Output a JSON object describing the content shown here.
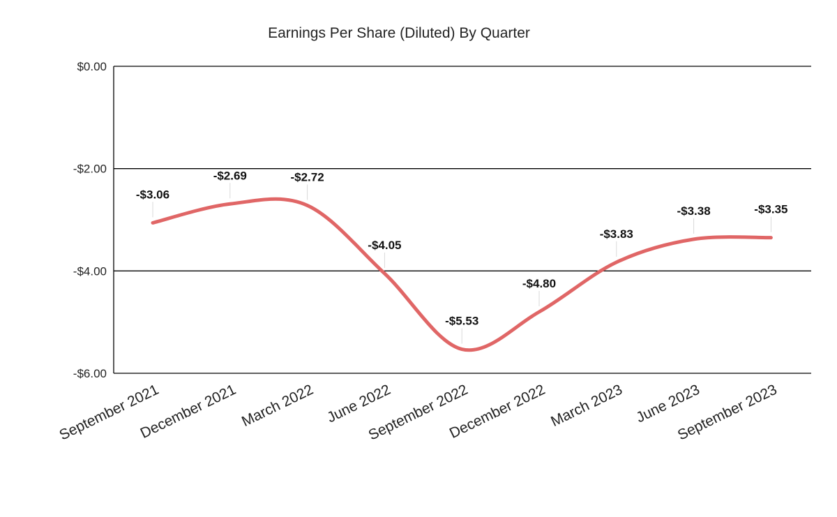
{
  "chart_data": {
    "type": "line",
    "title": "Earnings Per Share (Diluted) By Quarter",
    "xlabel": "",
    "ylabel": "",
    "categories": [
      "September 2021",
      "December 2021",
      "March 2022",
      "June 2022",
      "September 2022",
      "December 2022",
      "March 2023",
      "June 2023",
      "September 2023"
    ],
    "series": [
      {
        "values": [
          -3.06,
          -2.69,
          -2.72,
          -4.05,
          -5.53,
          -4.8,
          -3.83,
          -3.38,
          -3.35
        ],
        "data_labels": [
          "-$3.06",
          "-$2.69",
          "-$2.72",
          "-$4.05",
          "-$5.53",
          "-$4.80",
          "-$3.83",
          "-$3.38",
          "-$3.35"
        ],
        "color": "#e06666"
      }
    ],
    "ylim": [
      -6,
      0
    ],
    "yticks": [
      0,
      -2,
      -4,
      -6
    ],
    "ytick_labels": [
      "$0.00",
      "-$2.00",
      "-$4.00",
      "-$6.00"
    ],
    "grid": true,
    "legend": "none",
    "smooth": true
  }
}
